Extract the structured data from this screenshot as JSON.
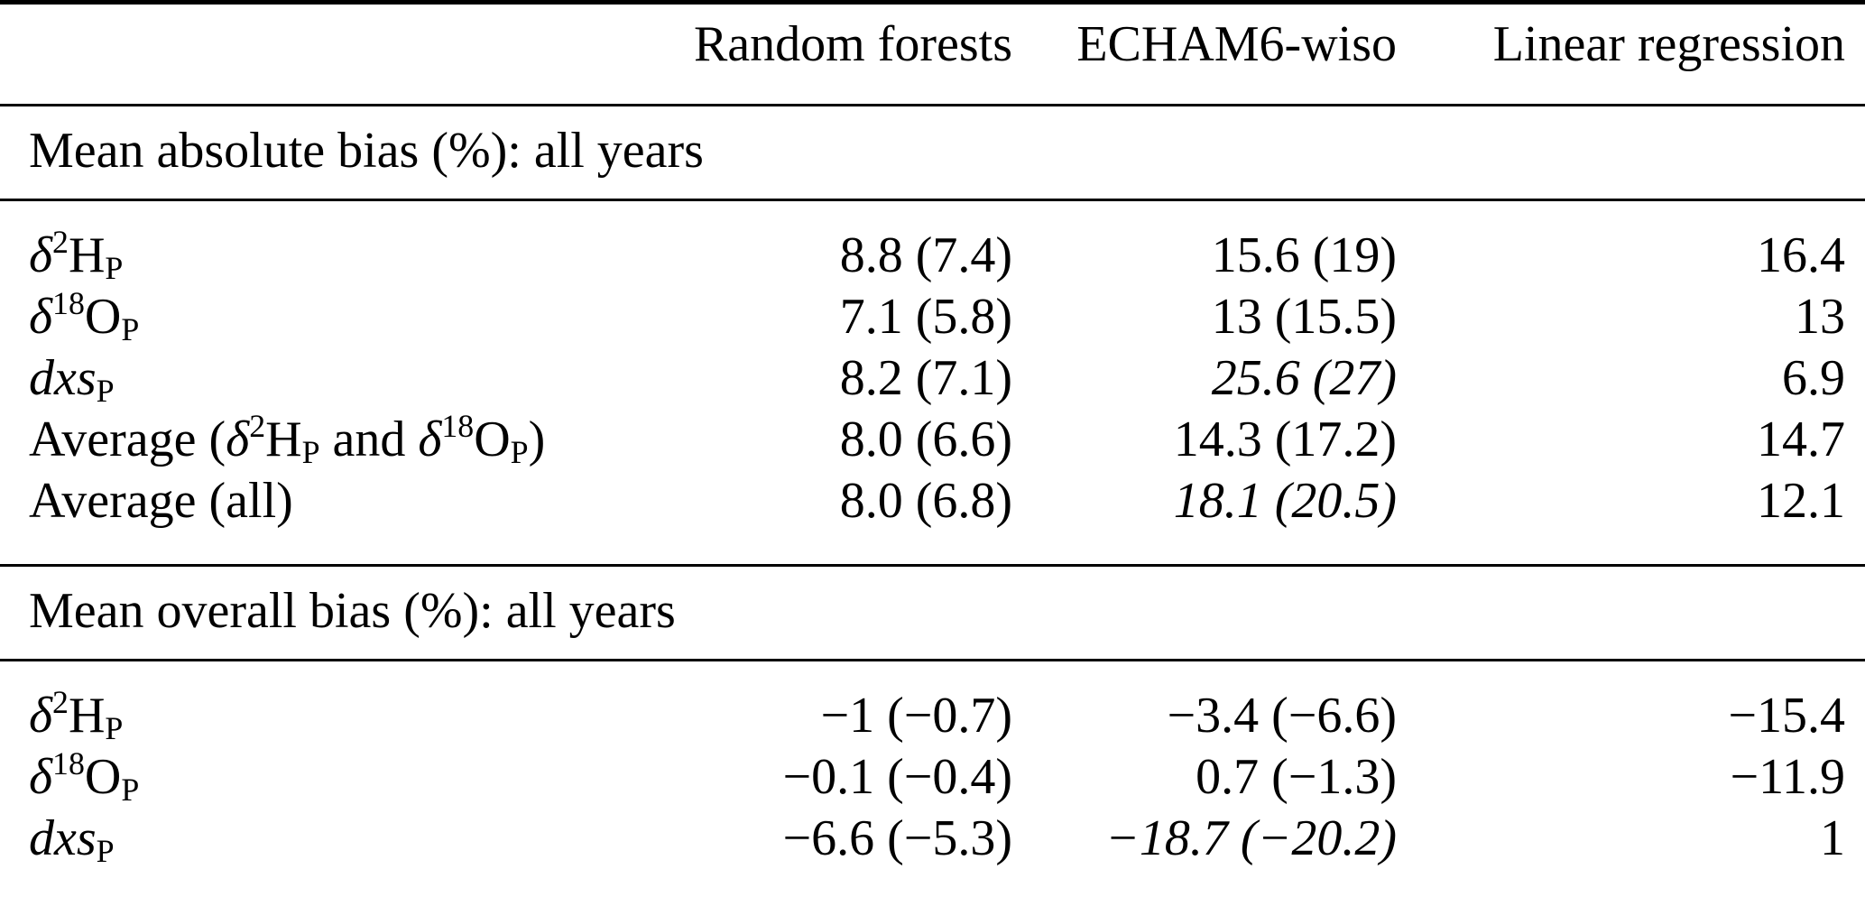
{
  "colors": {
    "text": "#000000",
    "background": "#ffffff",
    "rule": "#000000"
  },
  "table": {
    "header": {
      "label": "",
      "columns": [
        "Random forests",
        "ECHAM6-wiso",
        "Linear regression"
      ]
    },
    "sections": [
      {
        "title": "Mean absolute bias (%): all years",
        "rows": [
          {
            "label": [
              {
                "t": "δ",
                "i": 1
              },
              {
                "t": "2",
                "sup": 1
              },
              {
                "t": "H"
              },
              {
                "t": "P",
                "sub": 1
              }
            ],
            "values": [
              "8.8 (7.4)",
              "15.6 (19)",
              "16.4"
            ],
            "italic": [
              false,
              false,
              false
            ]
          },
          {
            "label": [
              {
                "t": "δ",
                "i": 1
              },
              {
                "t": "18",
                "sup": 1
              },
              {
                "t": "O"
              },
              {
                "t": "P",
                "sub": 1
              }
            ],
            "values": [
              "7.1 (5.8)",
              "13 (15.5)",
              "13"
            ],
            "italic": [
              false,
              false,
              false
            ]
          },
          {
            "label": [
              {
                "t": "dxs",
                "i": 1
              },
              {
                "t": "P",
                "sub": 1
              }
            ],
            "values": [
              "8.2 (7.1)",
              "25.6 (27)",
              "6.9"
            ],
            "italic": [
              false,
              true,
              false
            ]
          },
          {
            "label": [
              {
                "t": "Average ("
              },
              {
                "t": "δ",
                "i": 1
              },
              {
                "t": "2",
                "sup": 1
              },
              {
                "t": "H"
              },
              {
                "t": "P",
                "sub": 1
              },
              {
                "t": " and "
              },
              {
                "t": "δ",
                "i": 1
              },
              {
                "t": "18",
                "sup": 1
              },
              {
                "t": "O"
              },
              {
                "t": "P",
                "sub": 1
              },
              {
                "t": ")"
              }
            ],
            "values": [
              "8.0 (6.6)",
              "14.3 (17.2)",
              "14.7"
            ],
            "italic": [
              false,
              false,
              false
            ]
          },
          {
            "label": [
              {
                "t": "Average (all)"
              }
            ],
            "values": [
              "8.0 (6.8)",
              "18.1 (20.5)",
              "12.1"
            ],
            "italic": [
              false,
              true,
              false
            ]
          }
        ]
      },
      {
        "title": "Mean overall bias (%): all years",
        "rows": [
          {
            "label": [
              {
                "t": "δ",
                "i": 1
              },
              {
                "t": "2",
                "sup": 1
              },
              {
                "t": "H"
              },
              {
                "t": "P",
                "sub": 1
              }
            ],
            "values": [
              "−1 (−0.7)",
              "−3.4 (−6.6)",
              "−15.4"
            ],
            "italic": [
              false,
              false,
              false
            ]
          },
          {
            "label": [
              {
                "t": "δ",
                "i": 1
              },
              {
                "t": "18",
                "sup": 1
              },
              {
                "t": "O"
              },
              {
                "t": "P",
                "sub": 1
              }
            ],
            "values": [
              "−0.1 (−0.4)",
              "0.7 (−1.3)",
              "−11.9"
            ],
            "italic": [
              false,
              false,
              false
            ]
          },
          {
            "label": [
              {
                "t": "dxs",
                "i": 1
              },
              {
                "t": "P",
                "sub": 1
              }
            ],
            "values": [
              "−6.6 (−5.3)",
              "−18.7 (−20.2)",
              "1"
            ],
            "italic": [
              false,
              true,
              false
            ]
          }
        ]
      }
    ]
  }
}
